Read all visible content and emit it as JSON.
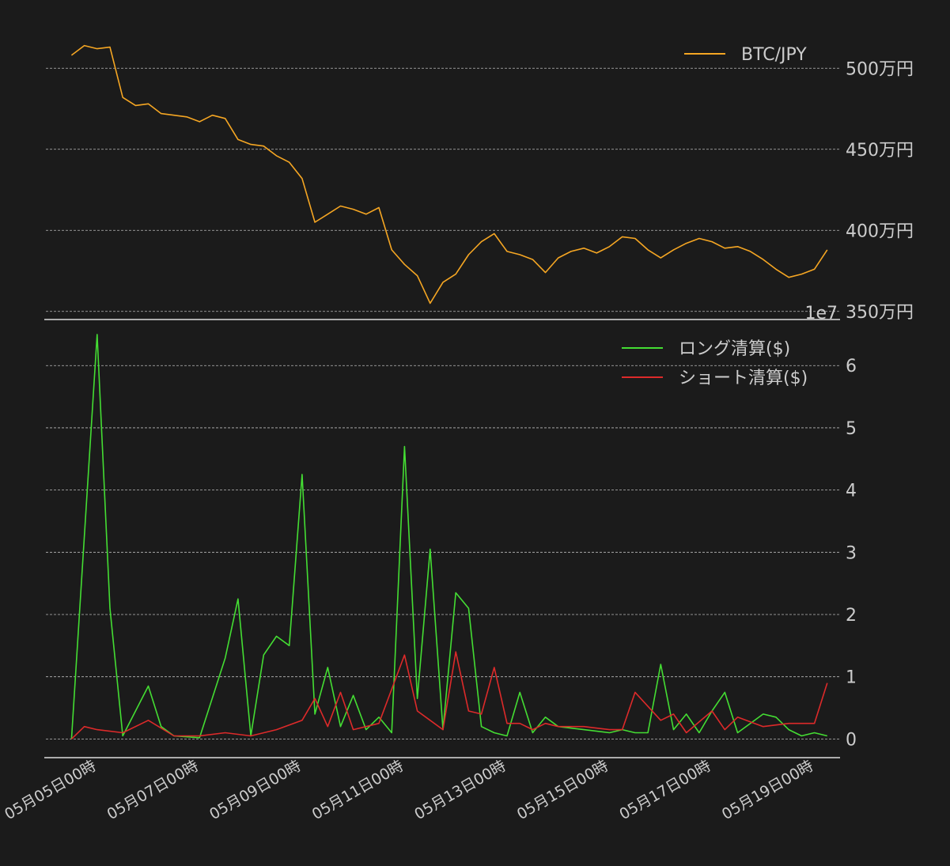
{
  "theme": {
    "background": "#1b1b1b",
    "grid_color": "#bbbbbb",
    "text_color": "#cccccc",
    "spine_color": "#dddddd",
    "price_color": "#f5a623",
    "long_color": "#44dd33",
    "short_color": "#dd2a2a"
  },
  "chart_data": [
    {
      "type": "line",
      "x_axis_type": "date",
      "x_range": [
        "2023-05-04T00:00",
        "2023-05-19T12:00"
      ],
      "y_axis_position": "right",
      "ylim": [
        3450000,
        5250000
      ],
      "yticks": [
        {
          "value": 3500000,
          "label": "350万円"
        },
        {
          "value": 4000000,
          "label": "400万円"
        },
        {
          "value": 4500000,
          "label": "450万円"
        },
        {
          "value": 5000000,
          "label": "500万円"
        }
      ],
      "grid": "horizontal-dashed",
      "legend_position": "top-right",
      "series": [
        {
          "name": "BTC/JPY",
          "color": "#f5a623",
          "x": [
            "2023-05-04T12:00",
            "2023-05-04T18:00",
            "2023-05-05T00:00",
            "2023-05-05T06:00",
            "2023-05-05T12:00",
            "2023-05-05T18:00",
            "2023-05-06T00:00",
            "2023-05-06T06:00",
            "2023-05-06T12:00",
            "2023-05-06T18:00",
            "2023-05-07T00:00",
            "2023-05-07T06:00",
            "2023-05-07T12:00",
            "2023-05-07T18:00",
            "2023-05-08T00:00",
            "2023-05-08T06:00",
            "2023-05-08T12:00",
            "2023-05-08T18:00",
            "2023-05-09T00:00",
            "2023-05-09T06:00",
            "2023-05-09T12:00",
            "2023-05-09T18:00",
            "2023-05-10T00:00",
            "2023-05-10T06:00",
            "2023-05-10T12:00",
            "2023-05-10T18:00",
            "2023-05-11T00:00",
            "2023-05-11T06:00",
            "2023-05-11T12:00",
            "2023-05-11T18:00",
            "2023-05-12T00:00",
            "2023-05-12T06:00",
            "2023-05-12T12:00",
            "2023-05-12T18:00",
            "2023-05-13T00:00",
            "2023-05-13T06:00",
            "2023-05-13T12:00",
            "2023-05-13T18:00",
            "2023-05-14T00:00",
            "2023-05-14T06:00",
            "2023-05-14T12:00",
            "2023-05-14T18:00",
            "2023-05-15T00:00",
            "2023-05-15T06:00",
            "2023-05-15T12:00",
            "2023-05-15T18:00",
            "2023-05-16T00:00",
            "2023-05-16T06:00",
            "2023-05-16T12:00",
            "2023-05-16T18:00",
            "2023-05-17T00:00",
            "2023-05-17T06:00",
            "2023-05-17T12:00",
            "2023-05-17T18:00",
            "2023-05-18T00:00",
            "2023-05-18T06:00",
            "2023-05-18T12:00",
            "2023-05-18T18:00",
            "2023-05-19T00:00",
            "2023-05-19T06:00"
          ],
          "values": [
            5080000,
            5140000,
            5120000,
            5130000,
            4820000,
            4770000,
            4780000,
            4720000,
            4710000,
            4700000,
            4670000,
            4710000,
            4690000,
            4560000,
            4530000,
            4520000,
            4460000,
            4420000,
            4320000,
            4050000,
            4100000,
            4150000,
            4130000,
            4100000,
            4140000,
            3880000,
            3790000,
            3720000,
            3550000,
            3680000,
            3730000,
            3850000,
            3930000,
            3980000,
            3870000,
            3850000,
            3820000,
            3740000,
            3830000,
            3870000,
            3890000,
            3860000,
            3900000,
            3960000,
            3950000,
            3880000,
            3830000,
            3880000,
            3920000,
            3950000,
            3930000,
            3890000,
            3900000,
            3870000,
            3820000,
            3760000,
            3710000,
            3730000,
            3760000,
            3880000
          ]
        }
      ]
    },
    {
      "type": "line",
      "x_axis_type": "date",
      "x_range": [
        "2023-05-04T00:00",
        "2023-05-19T12:00"
      ],
      "y_axis_position": "right",
      "offset_label": "1e7",
      "ylim": [
        -3000000,
        66000000
      ],
      "yticks": [
        {
          "value": 0,
          "label": "0"
        },
        {
          "value": 10000000,
          "label": "1"
        },
        {
          "value": 20000000,
          "label": "2"
        },
        {
          "value": 30000000,
          "label": "3"
        },
        {
          "value": 40000000,
          "label": "4"
        },
        {
          "value": 50000000,
          "label": "5"
        },
        {
          "value": 60000000,
          "label": "6"
        }
      ],
      "xticks": [
        {
          "value": "2023-05-05T00:00",
          "label": "05月05日00時"
        },
        {
          "value": "2023-05-07T00:00",
          "label": "05月07日00時"
        },
        {
          "value": "2023-05-09T00:00",
          "label": "05月09日00時"
        },
        {
          "value": "2023-05-11T00:00",
          "label": "05月11日00時"
        },
        {
          "value": "2023-05-13T00:00",
          "label": "05月13日00時"
        },
        {
          "value": "2023-05-15T00:00",
          "label": "05月15日00時"
        },
        {
          "value": "2023-05-17T00:00",
          "label": "05月17日00時"
        },
        {
          "value": "2023-05-19T00:00",
          "label": "05月19日00時"
        }
      ],
      "grid": "horizontal-dashed",
      "legend_position": "top-right",
      "series": [
        {
          "name": "ロング清算($)",
          "color": "#44dd33",
          "x": [
            "2023-05-04T12:00",
            "2023-05-05T00:00",
            "2023-05-05T06:00",
            "2023-05-05T12:00",
            "2023-05-06T00:00",
            "2023-05-06T06:00",
            "2023-05-06T12:00",
            "2023-05-07T00:00",
            "2023-05-07T12:00",
            "2023-05-07T18:00",
            "2023-05-08T00:00",
            "2023-05-08T06:00",
            "2023-05-08T12:00",
            "2023-05-08T18:00",
            "2023-05-09T00:00",
            "2023-05-09T06:00",
            "2023-05-09T12:00",
            "2023-05-09T18:00",
            "2023-05-10T00:00",
            "2023-05-10T06:00",
            "2023-05-10T12:00",
            "2023-05-10T18:00",
            "2023-05-11T00:00",
            "2023-05-11T06:00",
            "2023-05-11T12:00",
            "2023-05-11T18:00",
            "2023-05-12T00:00",
            "2023-05-12T06:00",
            "2023-05-12T12:00",
            "2023-05-12T18:00",
            "2023-05-13T00:00",
            "2023-05-13T06:00",
            "2023-05-13T12:00",
            "2023-05-13T18:00",
            "2023-05-14T00:00",
            "2023-05-14T12:00",
            "2023-05-15T00:00",
            "2023-05-15T06:00",
            "2023-05-15T12:00",
            "2023-05-15T18:00",
            "2023-05-16T00:00",
            "2023-05-16T06:00",
            "2023-05-16T12:00",
            "2023-05-16T18:00",
            "2023-05-17T00:00",
            "2023-05-17T06:00",
            "2023-05-17T12:00",
            "2023-05-18T00:00",
            "2023-05-18T06:00",
            "2023-05-18T12:00",
            "2023-05-18T18:00",
            "2023-05-19T00:00",
            "2023-05-19T06:00"
          ],
          "values": [
            0,
            65000000,
            21000000,
            500000,
            8500000,
            2000000,
            500000,
            200000,
            13000000,
            22500000,
            500000,
            13500000,
            16500000,
            15000000,
            42500000,
            4000000,
            11500000,
            2000000,
            7000000,
            1500000,
            3500000,
            1000000,
            47000000,
            6500000,
            30500000,
            1500000,
            23500000,
            21000000,
            2000000,
            1000000,
            500000,
            7500000,
            1000000,
            3500000,
            2000000,
            1500000,
            1000000,
            1500000,
            1000000,
            1000000,
            12000000,
            1500000,
            4000000,
            1000000,
            4500000,
            7500000,
            1000000,
            4000000,
            3500000,
            1500000,
            500000,
            1000000,
            500000
          ]
        },
        {
          "name": "ショート清算($)",
          "color": "#dd2a2a",
          "x": [
            "2023-05-04T12:00",
            "2023-05-04T18:00",
            "2023-05-05T00:00",
            "2023-05-05T12:00",
            "2023-05-06T00:00",
            "2023-05-06T12:00",
            "2023-05-07T00:00",
            "2023-05-07T12:00",
            "2023-05-08T00:00",
            "2023-05-08T12:00",
            "2023-05-09T00:00",
            "2023-05-09T06:00",
            "2023-05-09T12:00",
            "2023-05-09T18:00",
            "2023-05-10T00:00",
            "2023-05-10T12:00",
            "2023-05-11T00:00",
            "2023-05-11T06:00",
            "2023-05-11T12:00",
            "2023-05-11T18:00",
            "2023-05-12T00:00",
            "2023-05-12T06:00",
            "2023-05-12T12:00",
            "2023-05-12T18:00",
            "2023-05-13T00:00",
            "2023-05-13T06:00",
            "2023-05-13T12:00",
            "2023-05-13T18:00",
            "2023-05-14T00:00",
            "2023-05-14T12:00",
            "2023-05-15T00:00",
            "2023-05-15T06:00",
            "2023-05-15T12:00",
            "2023-05-16T00:00",
            "2023-05-16T06:00",
            "2023-05-16T12:00",
            "2023-05-17T00:00",
            "2023-05-17T06:00",
            "2023-05-17T12:00",
            "2023-05-18T00:00",
            "2023-05-18T12:00",
            "2023-05-19T00:00",
            "2023-05-19T06:00"
          ],
          "values": [
            0,
            2000000,
            1500000,
            1000000,
            3000000,
            500000,
            500000,
            1000000,
            500000,
            1500000,
            3000000,
            6500000,
            2000000,
            7500000,
            1500000,
            2500000,
            13500000,
            4500000,
            3000000,
            1500000,
            14000000,
            4500000,
            4000000,
            11500000,
            2500000,
            2500000,
            1500000,
            2500000,
            2000000,
            2000000,
            1500000,
            1500000,
            7500000,
            3000000,
            4000000,
            1000000,
            4500000,
            1500000,
            3500000,
            2000000,
            2500000,
            2500000,
            9000000
          ]
        }
      ]
    }
  ]
}
